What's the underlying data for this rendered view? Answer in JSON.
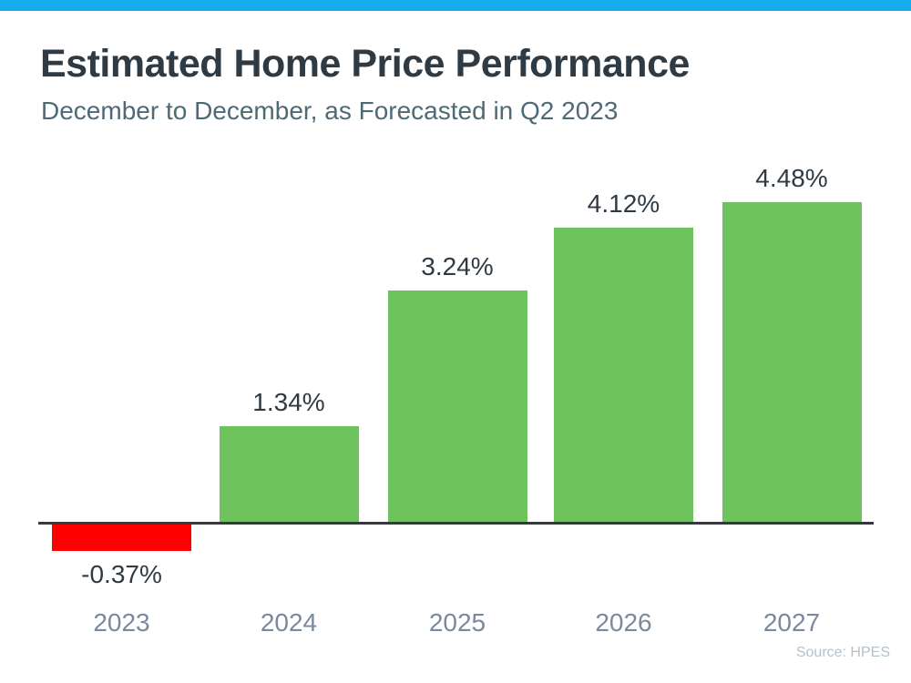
{
  "accent_color": "#18ACEC",
  "header": {
    "title": "Estimated Home Price Performance",
    "subtitle": "December to December, as Forecasted in Q2 2023"
  },
  "source": "Source: HPES",
  "colors": {
    "title_text": "#2E3A44",
    "subtitle_text": "#4E6A76",
    "value_label_text": "#2E3A44",
    "year_label_text": "#7A8A9C",
    "axis_line": "#333A41",
    "source_text": "#B4C2CB",
    "bar_positive": "#6EC25C",
    "bar_negative": "#FF0000"
  },
  "chart_data": {
    "type": "bar",
    "title": "Estimated Home Price Performance",
    "subtitle": "December to December, as Forecasted in Q2 2023",
    "categories": [
      "2023",
      "2024",
      "2025",
      "2026",
      "2027"
    ],
    "values": [
      -0.37,
      1.34,
      3.24,
      4.12,
      4.48
    ],
    "value_labels": [
      "-0.37%",
      "1.34%",
      "3.24%",
      "4.12%",
      "4.48%"
    ],
    "xlabel": "",
    "ylabel": "",
    "ylim": [
      -0.6,
      5.0
    ],
    "grid": false,
    "legend": false,
    "annotations": [
      "Source: HPES"
    ]
  }
}
